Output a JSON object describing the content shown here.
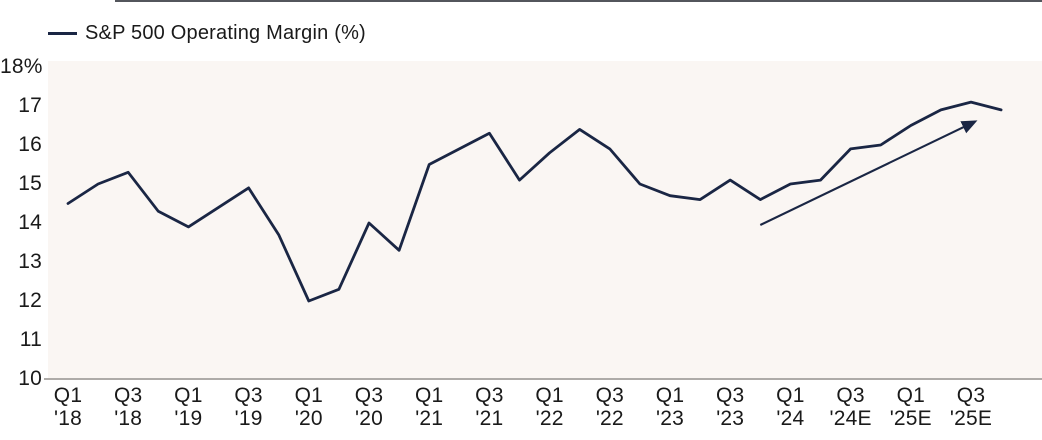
{
  "legend": {
    "label": "S&P 500 Operating Margin (%)"
  },
  "colors": {
    "line": "#1a2644",
    "arrow": "#1a2644",
    "plot_background": "#faf6f3",
    "axis_line": "#aeaba8",
    "text": "#1a1a1a",
    "top_rule": "#53565c"
  },
  "chart_data": {
    "type": "line",
    "title": "S&P 500 Operating Margin (%)",
    "legend_position": "top-left",
    "grid": false,
    "ylim": [
      10,
      18
    ],
    "y_tick_labels": [
      "18%",
      "17",
      "16",
      "15",
      "14",
      "13",
      "12",
      "11",
      "10"
    ],
    "y_tick_values": [
      18,
      17,
      16,
      15,
      14,
      13,
      12,
      11,
      10
    ],
    "quarters": [
      "Q1 '18",
      "Q2 '18",
      "Q3 '18",
      "Q4 '18",
      "Q1 '19",
      "Q2 '19",
      "Q3 '19",
      "Q4 '19",
      "Q1 '20",
      "Q2 '20",
      "Q3 '20",
      "Q4 '20",
      "Q1 '21",
      "Q2 '21",
      "Q3 '21",
      "Q4 '21",
      "Q1 '22",
      "Q2 '22",
      "Q3 '22",
      "Q4 '22",
      "Q1 '23",
      "Q2 '23",
      "Q3 '23",
      "Q4 '23",
      "Q1 '24",
      "Q2 '24",
      "Q3 '24E",
      "Q4 '24E",
      "Q1 '25E",
      "Q2 '25E",
      "Q3 '25E",
      "Q4 '25E"
    ],
    "series": [
      {
        "name": "S&P 500 Operating Margin (%)",
        "values": [
          14.5,
          15.0,
          15.3,
          14.3,
          13.9,
          14.4,
          14.9,
          13.7,
          12.0,
          12.3,
          14.0,
          13.3,
          15.5,
          15.9,
          16.3,
          15.1,
          15.8,
          16.4,
          15.9,
          15.0,
          14.7,
          14.6,
          15.1,
          14.6,
          15.0,
          15.1,
          15.9,
          16.0,
          16.5,
          16.9,
          17.1,
          16.9
        ]
      }
    ],
    "x_tick_labels": [
      [
        "Q1",
        "'18"
      ],
      [
        "Q3",
        "'18"
      ],
      [
        "Q1",
        "'19"
      ],
      [
        "Q3",
        "'19"
      ],
      [
        "Q1",
        "'20"
      ],
      [
        "Q3",
        "'20"
      ],
      [
        "Q1",
        "'21"
      ],
      [
        "Q3",
        "'21"
      ],
      [
        "Q1",
        "'22"
      ],
      [
        "Q3",
        "'22"
      ],
      [
        "Q1",
        "'23"
      ],
      [
        "Q3",
        "'23"
      ],
      [
        "Q1",
        "'24"
      ],
      [
        "Q3",
        "'24E"
      ],
      [
        "Q1",
        "'25E"
      ],
      [
        "Q3",
        "'25E"
      ]
    ],
    "annotation_arrow": {
      "from_quarter": "Q4 '23",
      "from_value": 13.95,
      "to_quarter": "Q3 '25E",
      "to_value": 16.6
    }
  }
}
